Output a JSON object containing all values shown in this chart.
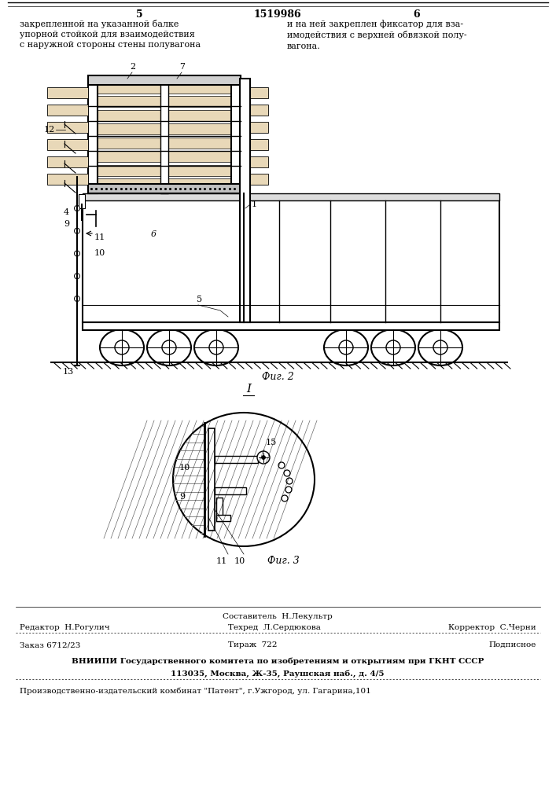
{
  "bg_color": "#ffffff",
  "lc": "#000000",
  "header_left_col": "5",
  "header_center": "1519986",
  "header_right_col": "6",
  "header_text_left": "закрепленной на указанной балке\nупорной стойкой для взаимодействия\nс наружной стороны стены полувагона",
  "header_text_right": "и на ней закреплен фиксатор для вза-\nимодействия с верхней обвязкой полу-\nвагона.",
  "fig2_caption": "Фиг. 2",
  "fig3_caption": "Фиг. 3",
  "footer_composer": "Составитель  Н.Лекультр",
  "footer_editor": "Редактор  Н.Рогулич",
  "footer_tech": "Техред  Л.Сердюкова",
  "footer_corrector": "Корректор  С.Черни",
  "footer_order": "Заказ 6712/23",
  "footer_circulation": "Тираж  722",
  "footer_subscription": "Подписное",
  "footer_vniiipi": "ВНИИПИ Государственного комитета по изобретениям и открытиям при ГКНТ СССР",
  "footer_address": "113035, Москва, Ж-35, Раушская наб., д. 4/5",
  "footer_factory": "Производственно-издательский комбинат \"Патент\", г.Ужгород, ул. Гагарина,101"
}
